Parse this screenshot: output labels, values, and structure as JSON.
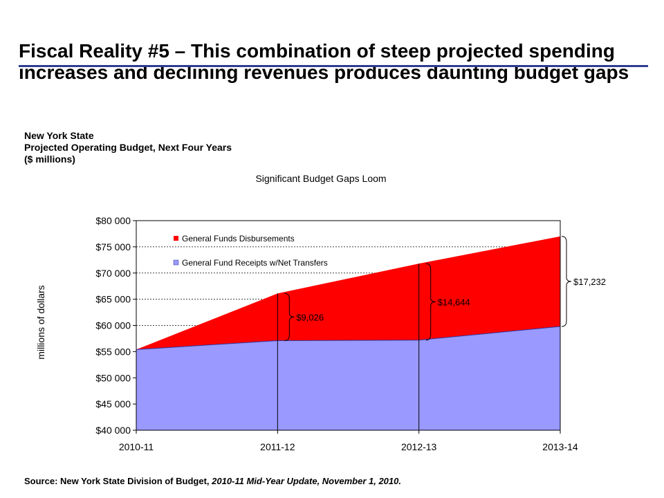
{
  "slide": {
    "title": "Fiscal Reality #5  – This combination of steep projected spending increases and declining revenues produces daunting budget gaps",
    "subtitle_lines": [
      "New York State",
      "Projected Operating Budget, Next Four Years",
      "($ millions)"
    ],
    "source_prefix": "Source: New York State Division of Budget, ",
    "source_italic": "2010-11 Mid-Year Update, November 1, 2010."
  },
  "colors": {
    "rule": "#2e3b8f",
    "disbursements": "#ff0000",
    "receipts": "#9999ff"
  },
  "chart_data": {
    "type": "area",
    "title": "Significant Budget Gaps Loom",
    "xlabel": "",
    "ylabel": "millions of dollars",
    "categories": [
      "2010-11",
      "2011-12",
      "2012-13",
      "2013-14"
    ],
    "ylim": [
      40000,
      80000
    ],
    "yticks": [
      40000,
      45000,
      50000,
      55000,
      60000,
      65000,
      70000,
      75000,
      80000
    ],
    "ytick_labels": [
      "$40 000",
      "$45 000",
      "$50 000",
      "$55 000",
      "$60 000",
      "$65 000",
      "$70 000",
      "$75 000",
      "$80 000"
    ],
    "grid": "horizontal dashed",
    "legend_placement": "top-left inside",
    "series": [
      {
        "name": "General Funds Disbursements",
        "color": "#ff0000",
        "values": [
          55400,
          66100,
          71800,
          77000
        ]
      },
      {
        "name": "General Fund Receipts w/Net Transfers",
        "color": "#9999ff",
        "values": [
          55400,
          57100,
          57200,
          59800
        ]
      }
    ],
    "gap_annotations": [
      {
        "category": "2011-12",
        "label": "$9,026"
      },
      {
        "category": "2012-13",
        "label": "$14,644"
      },
      {
        "category": "2013-14",
        "label": "$17,232"
      }
    ]
  }
}
